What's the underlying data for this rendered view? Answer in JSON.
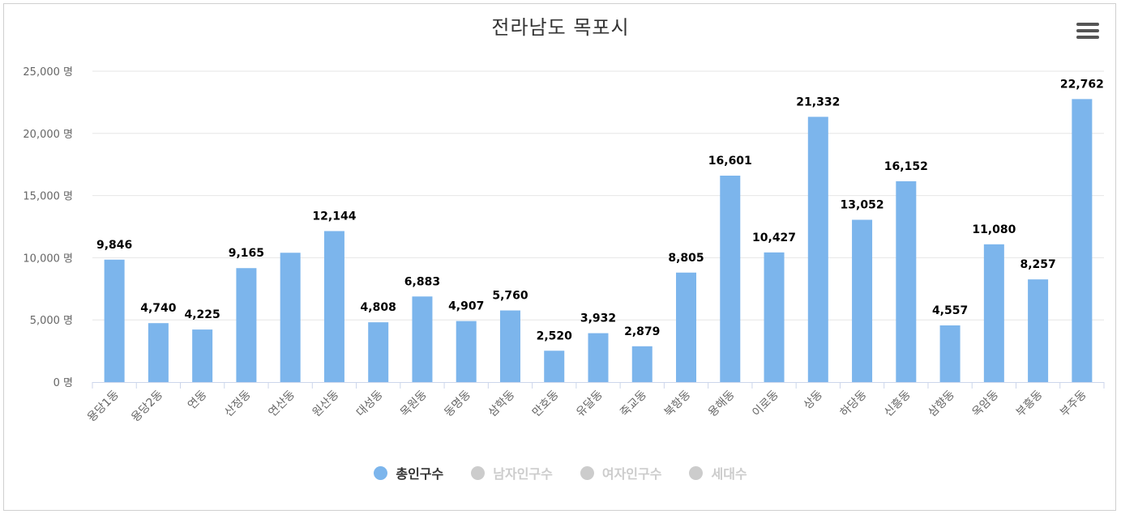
{
  "title": "전라남도 목포시",
  "menu_icon": "hamburger-menu-icon",
  "colors": {
    "bar": "#7cb5ec",
    "inactive": "#cccccc",
    "active_text": "#333333"
  },
  "legend": [
    {
      "label": "총인구수",
      "active": true
    },
    {
      "label": "남자인구수",
      "active": false
    },
    {
      "label": "여자인구수",
      "active": false
    },
    {
      "label": "세대수",
      "active": false
    }
  ],
  "chart_data": {
    "type": "bar",
    "title": "전라남도 목포시",
    "y_unit": "명",
    "ylim": [
      0,
      25000
    ],
    "yticks": [
      0,
      5000,
      10000,
      15000,
      20000,
      25000
    ],
    "ytick_labels": [
      "0 명",
      "5,000 명",
      "10,000 명",
      "15,000 명",
      "20,000 명",
      "25,000 명"
    ],
    "grid": true,
    "legend_position": "bottom",
    "categories": [
      "용당1동",
      "용당2동",
      "연동",
      "산정동",
      "연산동",
      "원산동",
      "대성동",
      "목원동",
      "동명동",
      "삼학동",
      "만호동",
      "유달동",
      "죽교동",
      "북항동",
      "용해동",
      "이로동",
      "상동",
      "하당동",
      "신흥동",
      "삼향동",
      "옥암동",
      "부흥동",
      "부주동"
    ],
    "series": [
      {
        "name": "총인구수",
        "values": [
          9846,
          4740,
          4225,
          9165,
          10400,
          12144,
          4808,
          6883,
          4907,
          5760,
          2520,
          3932,
          2879,
          8805,
          16601,
          10427,
          21332,
          13052,
          16152,
          4557,
          11080,
          8257,
          22762
        ],
        "data_labels": [
          "9,846",
          "4,740",
          "4,225",
          "9,165",
          "",
          "12,144",
          "4,808",
          "6,883",
          "4,907",
          "5,760",
          "2,520",
          "3,932",
          "2,879",
          "8,805",
          "16,601",
          "10,427",
          "21,332",
          "13,052",
          "16,152",
          "4,557",
          "11,080",
          "8,257",
          "22,762"
        ]
      }
    ]
  }
}
